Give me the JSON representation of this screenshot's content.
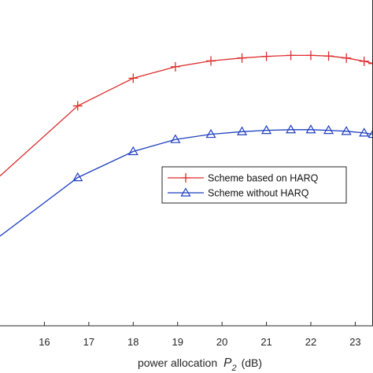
{
  "chart_data": {
    "type": "line",
    "title": "",
    "xlabel": {
      "prefix": "power allocation",
      "var": "P",
      "sub": "2",
      "unit": "(dB)"
    },
    "ylabel": "",
    "xlim": [
      15.0,
      23.4
    ],
    "ylim": [
      0,
      1
    ],
    "xticks": [
      "16",
      "17",
      "18",
      "19",
      "20",
      "21",
      "22",
      "23"
    ],
    "grid": false,
    "legend_position": "center-right",
    "series": [
      {
        "name": "Scheme based on HARQ",
        "color": "#dd2c2c",
        "marker": "plus",
        "x": [
          15.0,
          16.75,
          18.0,
          18.95,
          19.75,
          20.45,
          21.0,
          21.55,
          22.0,
          22.4,
          22.8,
          23.2,
          23.4
        ],
        "y": [
          0.46,
          0.675,
          0.76,
          0.795,
          0.813,
          0.822,
          0.827,
          0.83,
          0.83,
          0.828,
          0.822,
          0.812,
          0.805
        ]
      },
      {
        "name": "Scheme without HARQ",
        "color": "#1f3fbf",
        "marker": "triangle",
        "x": [
          15.0,
          16.75,
          18.0,
          18.95,
          19.75,
          20.45,
          21.0,
          21.55,
          22.0,
          22.4,
          22.8,
          23.2,
          23.4
        ],
        "y": [
          0.275,
          0.455,
          0.535,
          0.572,
          0.588,
          0.596,
          0.6,
          0.602,
          0.602,
          0.6,
          0.597,
          0.592,
          0.588
        ]
      }
    ]
  }
}
